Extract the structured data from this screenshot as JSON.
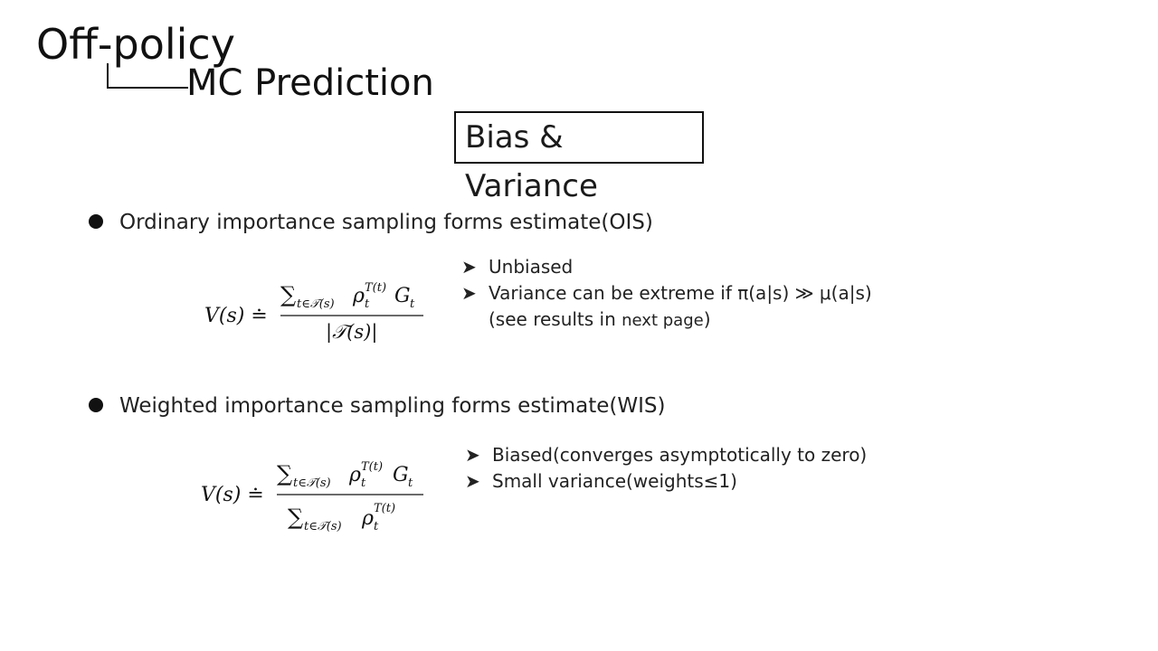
{
  "header": {
    "title": "Off-policy",
    "subtitle": "MC Prediction",
    "section_box": "Bias & Variance"
  },
  "bullets": [
    {
      "text": "Ordinary importance sampling forms estimate(OIS)",
      "formula": {
        "lhs": "V(s) ≐",
        "numerator_sum": "∑",
        "numerator_sub": "t∈𝒯(s)",
        "numerator_rho": "ρ",
        "numerator_rho_sup": "T(t)",
        "numerator_rho_sub": "t",
        "numerator_G": "G",
        "numerator_G_sub": "t",
        "denominator": "|𝒯(s)|"
      },
      "points": [
        "Unbiased",
        "Variance can be extreme if π(a|s) ≫ μ(a|s)"
      ],
      "note_prefix": "(see results in ",
      "note_link": "next page",
      "note_suffix": ")"
    },
    {
      "text": "Weighted importance sampling forms estimate(WIS)",
      "formula": {
        "lhs": "V(s) ≐",
        "numerator_sum": "∑",
        "numerator_sub": "t∈𝒯(s)",
        "numerator_rho": "ρ",
        "numerator_rho_sup": "T(t)",
        "numerator_rho_sub": "t",
        "numerator_G": "G",
        "numerator_G_sub": "t",
        "denominator_sum": "∑",
        "denominator_sub": "t∈𝒯(s)",
        "denominator_rho": "ρ",
        "denominator_rho_sup": "T(t)",
        "denominator_rho_sub": "t"
      },
      "points": [
        "Biased(converges asymptotically to zero)",
        "Small variance(weights≤1)"
      ]
    }
  ],
  "icons": {
    "bullet": "filled-circle-bullet-icon",
    "sub_bullet": "arrowhead-bullet-icon"
  }
}
